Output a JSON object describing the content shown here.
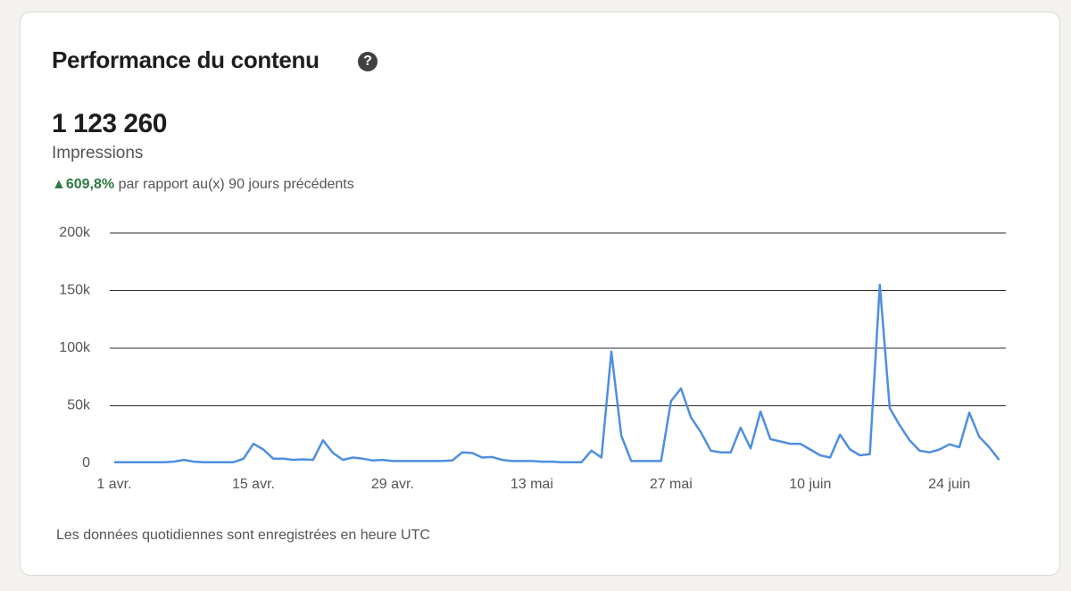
{
  "header": {
    "title": "Performance du contenu"
  },
  "summary": {
    "total": "1 123 260",
    "metric": "Impressions",
    "change": "609,8%",
    "comparison": "par rapport au(x) 90 jours précédents"
  },
  "footer": {
    "note": "Les données quotidiennes sont enregistrées en heure UTC"
  },
  "chart_data": {
    "type": "line",
    "categories": [
      "1 avr.",
      null,
      null,
      null,
      null,
      null,
      null,
      null,
      null,
      null,
      null,
      null,
      null,
      null,
      "15 avr.",
      null,
      null,
      null,
      null,
      null,
      null,
      null,
      null,
      null,
      null,
      null,
      null,
      null,
      "29 avr.",
      null,
      null,
      null,
      null,
      null,
      null,
      null,
      null,
      null,
      null,
      null,
      null,
      null,
      "13 mai",
      null,
      null,
      null,
      null,
      null,
      null,
      null,
      null,
      null,
      null,
      null,
      null,
      null,
      "27 mai",
      null,
      null,
      null,
      null,
      null,
      null,
      null,
      null,
      null,
      null,
      null,
      null,
      null,
      "10 juin",
      null,
      null,
      null,
      null,
      null,
      null,
      null,
      null,
      null,
      null,
      null,
      null,
      null,
      "24 juin",
      null,
      null,
      null,
      null,
      null
    ],
    "series": [
      {
        "name": "Impressions",
        "color": "#4f8ee0",
        "values": [
          1000,
          1000,
          1000,
          1000,
          1000,
          1000,
          1500,
          3000,
          1500,
          1000,
          1000,
          1000,
          1000,
          4000,
          17000,
          12000,
          4000,
          4000,
          3000,
          3500,
          3000,
          20000,
          9000,
          3000,
          5000,
          4000,
          2500,
          3000,
          2000,
          2000,
          2000,
          2000,
          2000,
          2000,
          2500,
          9500,
          9000,
          5000,
          5500,
          3000,
          2000,
          2000,
          2000,
          1500,
          1500,
          1000,
          1000,
          1000,
          11000,
          5000,
          97000,
          24000,
          2000,
          2000,
          2000,
          2000,
          54000,
          65000,
          40000,
          27000,
          11000,
          9500,
          9500,
          31000,
          13000,
          45000,
          21000,
          19000,
          17000,
          17000,
          12000,
          7000,
          5000,
          25000,
          12000,
          7000,
          8000,
          155000,
          48000,
          33000,
          20000,
          11000,
          9500,
          12000,
          16500,
          14000,
          44000,
          23000,
          14000,
          3000
        ]
      }
    ],
    "ylim": [
      0,
      200000
    ],
    "yticks": [
      0,
      {
        "value": 50000,
        "label": "50k"
      },
      {
        "value": 100000,
        "label": "100k"
      },
      {
        "value": 150000,
        "label": "150k"
      },
      {
        "value": 200000,
        "label": "200k"
      }
    ],
    "grid": true
  }
}
